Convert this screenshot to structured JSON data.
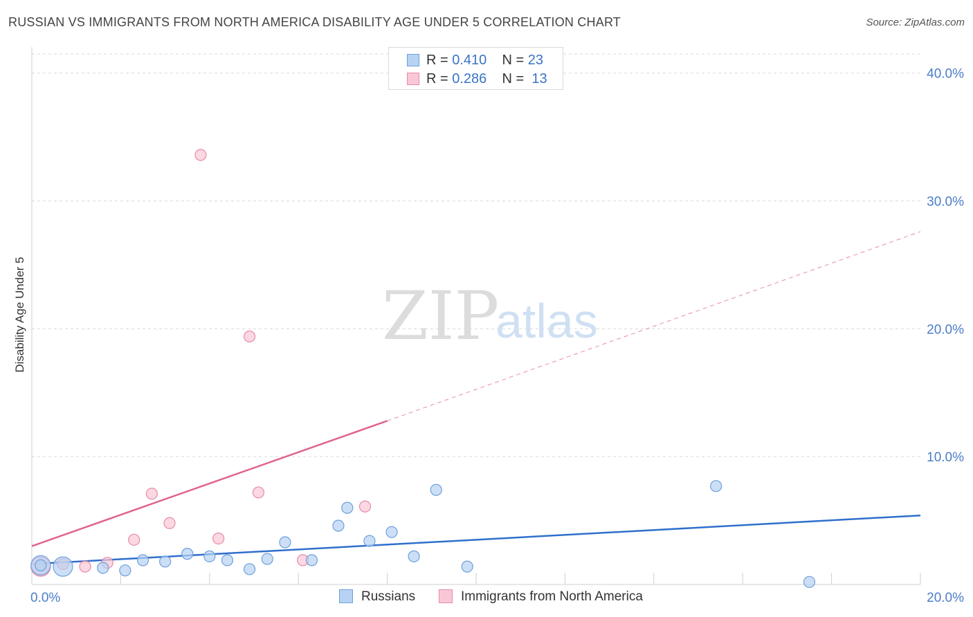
{
  "header": {
    "title": "RUSSIAN VS IMMIGRANTS FROM NORTH AMERICA DISABILITY AGE UNDER 5 CORRELATION CHART",
    "source": "Source: ZipAtlas.com"
  },
  "watermark": {
    "zip": "ZIP",
    "atlas": "atlas"
  },
  "legend": {
    "rows": [
      {
        "r_label": "R =",
        "r_value": "0.410",
        "n_label": "N =",
        "n_value": "23"
      },
      {
        "r_label": "R =",
        "r_value": "0.286",
        "n_label": "N =",
        "n_value": "13"
      }
    ]
  },
  "colors": {
    "russians_fill": "#b7d2f2",
    "russians_stroke": "#6d9fdc",
    "russians_line": "#2f6fcc",
    "immigrants_fill": "#f9c8d6",
    "immigrants_stroke": "#e88aa6",
    "immigrants_line": "#e0638e",
    "grid": "#d9d9d9",
    "tick_text": "#4a7cc9"
  },
  "chart_data": {
    "type": "scatter",
    "title": "RUSSIAN VS IMMIGRANTS FROM NORTH AMERICA DISABILITY AGE UNDER 5 CORRELATION CHART",
    "xlabel": "",
    "ylabel": "Disability Age Under 5",
    "xlim": [
      0,
      20
    ],
    "ylim": [
      0,
      41.5
    ],
    "x_tick_labels": [
      {
        "value": 0,
        "label": "0.0%"
      },
      {
        "value": 20,
        "label": "20.0%"
      }
    ],
    "y_tick_labels": [
      {
        "value": 10,
        "label": "10.0%"
      },
      {
        "value": 20,
        "label": "20.0%"
      },
      {
        "value": 30,
        "label": "30.0%"
      },
      {
        "value": 40,
        "label": "40.0%"
      }
    ],
    "grid": true,
    "legend_position": "bottom",
    "series": [
      {
        "name": "Russians",
        "points": [
          {
            "x": 0.2,
            "y": 1.5,
            "big": true
          },
          {
            "x": 0.7,
            "y": 1.4,
            "big": true
          },
          {
            "x": 1.6,
            "y": 1.3
          },
          {
            "x": 2.1,
            "y": 1.1
          },
          {
            "x": 2.5,
            "y": 1.9
          },
          {
            "x": 3.0,
            "y": 1.8
          },
          {
            "x": 3.5,
            "y": 2.4
          },
          {
            "x": 4.0,
            "y": 2.2
          },
          {
            "x": 4.4,
            "y": 1.9
          },
          {
            "x": 4.9,
            "y": 1.2
          },
          {
            "x": 5.3,
            "y": 2.0
          },
          {
            "x": 5.7,
            "y": 3.3
          },
          {
            "x": 6.3,
            "y": 1.9
          },
          {
            "x": 6.9,
            "y": 4.6
          },
          {
            "x": 7.1,
            "y": 6.0
          },
          {
            "x": 7.6,
            "y": 3.4
          },
          {
            "x": 8.1,
            "y": 4.1
          },
          {
            "x": 8.6,
            "y": 2.2
          },
          {
            "x": 9.1,
            "y": 7.4
          },
          {
            "x": 9.8,
            "y": 1.4
          },
          {
            "x": 15.4,
            "y": 7.7
          },
          {
            "x": 17.5,
            "y": 0.2
          },
          {
            "x": 0.2,
            "y": 1.5
          }
        ],
        "trend": {
          "x_start": 0,
          "y_start": 1.6,
          "x_end": 20,
          "y_end": 5.4
        }
      },
      {
        "name": "Immigrants from North America",
        "points": [
          {
            "x": 0.2,
            "y": 1.4,
            "big": true
          },
          {
            "x": 0.7,
            "y": 1.6
          },
          {
            "x": 1.2,
            "y": 1.4
          },
          {
            "x": 1.7,
            "y": 1.7
          },
          {
            "x": 2.3,
            "y": 3.5
          },
          {
            "x": 2.7,
            "y": 7.1
          },
          {
            "x": 3.1,
            "y": 4.8
          },
          {
            "x": 3.8,
            "y": 33.6
          },
          {
            "x": 4.2,
            "y": 3.6
          },
          {
            "x": 4.9,
            "y": 19.4
          },
          {
            "x": 5.1,
            "y": 7.2
          },
          {
            "x": 6.1,
            "y": 1.9
          },
          {
            "x": 7.5,
            "y": 6.1
          }
        ],
        "trend": {
          "x_start": 0,
          "y_start": 3.0,
          "x_end": 8.0,
          "y_end": 12.8,
          "dashed_x_end": 20,
          "dashed_y_end": 27.6
        }
      }
    ]
  },
  "bottom_legend": {
    "russians_label": "Russians",
    "immigrants_label": "Immigrants from North America"
  }
}
